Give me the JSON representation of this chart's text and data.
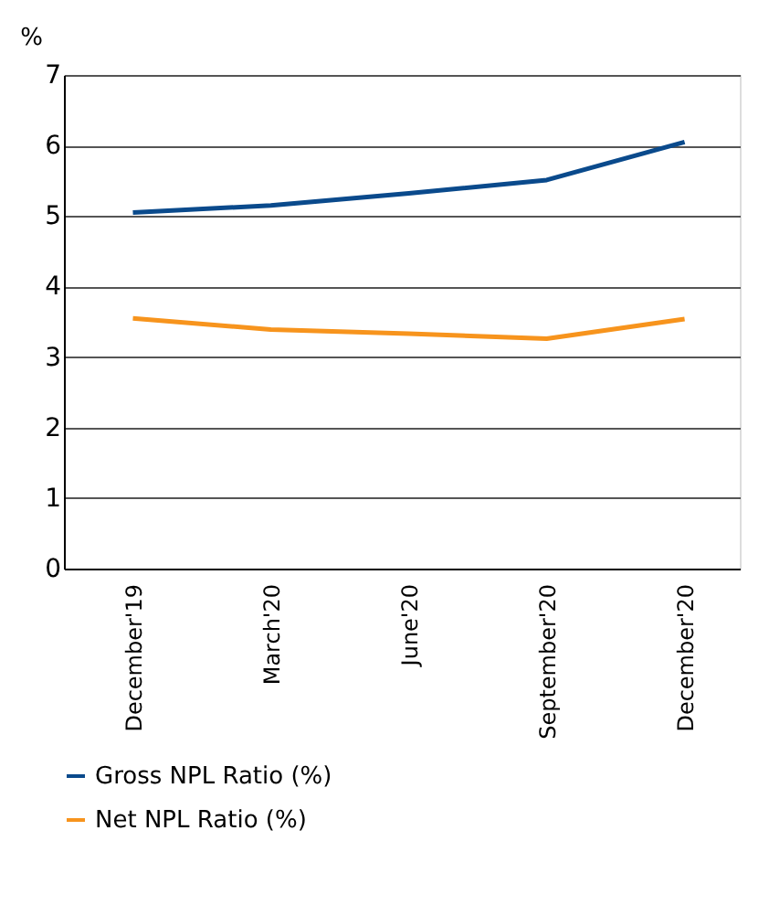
{
  "chart_data": {
    "type": "line",
    "ylabel": "%",
    "categories": [
      "December'19",
      "March'20",
      "June'20",
      "September'20",
      "December'20"
    ],
    "series": [
      {
        "name": "Gross NPL Ratio (%)",
        "color": "#0a4a8c",
        "values": [
          5.05,
          5.15,
          5.32,
          5.51,
          6.05
        ]
      },
      {
        "name": "Net NPL Ratio (%)",
        "color": "#f7941d",
        "values": [
          3.55,
          3.39,
          3.33,
          3.26,
          3.54
        ]
      }
    ],
    "ylim": [
      0,
      7
    ],
    "yticks": [
      0,
      1,
      2,
      3,
      4,
      5,
      6,
      7
    ],
    "grid": "y",
    "legend": "bottom",
    "marker": "none",
    "line_style": "solid"
  }
}
